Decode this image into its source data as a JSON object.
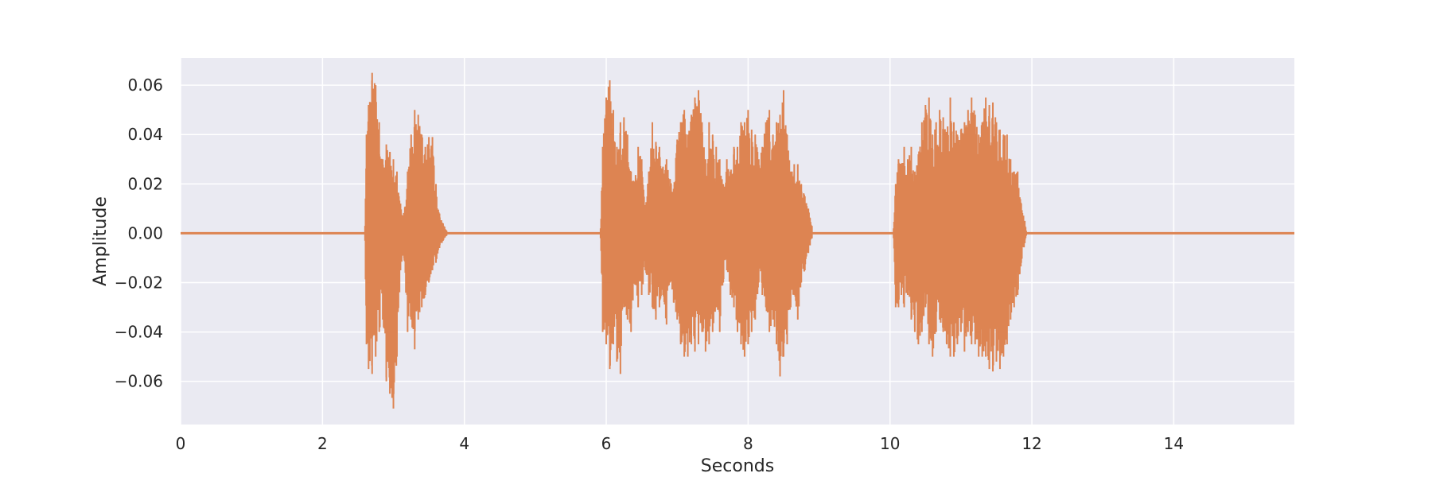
{
  "chart_data": {
    "type": "line",
    "title": "",
    "xlabel": "Seconds",
    "ylabel": "Amplitude",
    "xlim": [
      0,
      15.7
    ],
    "ylim": [
      -0.0775,
      0.071
    ],
    "x_ticks": [
      0,
      2,
      4,
      6,
      8,
      10,
      12,
      14
    ],
    "x_tick_labels": [
      "0",
      "2",
      "4",
      "6",
      "8",
      "10",
      "12",
      "14"
    ],
    "y_ticks": [
      0.06,
      0.04,
      0.02,
      0.0,
      -0.02,
      -0.04,
      -0.06
    ],
    "y_tick_labels": [
      "0.06",
      "0.04",
      "0.02",
      "0.00",
      "−0.02",
      "−0.04",
      "−0.06"
    ],
    "grid": true,
    "style": "seaborn-darkgrid",
    "colors": {
      "background": "#eaeaf2",
      "grid": "#ffffff",
      "series": "#dd8452"
    },
    "series": [
      {
        "description": "Audio waveform envelope (sampled max/min amplitude)",
        "segments": [
          {
            "start": 2.6,
            "end": 3.75,
            "envelope": [
              [
                2.6,
                0.003,
                -0.003
              ],
              [
                2.62,
                0.04,
                -0.045
              ],
              [
                2.65,
                0.052,
                -0.055
              ],
              [
                2.7,
                0.065,
                -0.057
              ],
              [
                2.75,
                0.06,
                -0.05
              ],
              [
                2.8,
                0.045,
                -0.04
              ],
              [
                2.85,
                0.03,
                -0.035
              ],
              [
                2.9,
                0.036,
                -0.06
              ],
              [
                2.95,
                0.033,
                -0.065
              ],
              [
                3.0,
                0.03,
                -0.071
              ],
              [
                3.05,
                0.025,
                -0.05
              ],
              [
                3.1,
                0.012,
                -0.015
              ],
              [
                3.15,
                0.008,
                -0.01
              ],
              [
                3.2,
                0.025,
                -0.04
              ],
              [
                3.25,
                0.04,
                -0.035
              ],
              [
                3.3,
                0.05,
                -0.047
              ],
              [
                3.35,
                0.048,
                -0.035
              ],
              [
                3.4,
                0.04,
                -0.03
              ],
              [
                3.45,
                0.035,
                -0.025
              ],
              [
                3.5,
                0.039,
                -0.02
              ],
              [
                3.55,
                0.039,
                -0.015
              ],
              [
                3.6,
                0.02,
                -0.012
              ],
              [
                3.65,
                0.008,
                -0.006
              ],
              [
                3.7,
                0.004,
                -0.003
              ],
              [
                3.75,
                0.001,
                -0.001
              ]
            ]
          },
          {
            "start": 5.92,
            "end": 8.9,
            "envelope": [
              [
                5.92,
                0.002,
                -0.002
              ],
              [
                5.95,
                0.035,
                -0.04
              ],
              [
                6.0,
                0.055,
                -0.045
              ],
              [
                6.05,
                0.062,
                -0.055
              ],
              [
                6.1,
                0.05,
                -0.045
              ],
              [
                6.15,
                0.035,
                -0.052
              ],
              [
                6.2,
                0.045,
                -0.057
              ],
              [
                6.25,
                0.047,
                -0.03
              ],
              [
                6.3,
                0.04,
                -0.035
              ],
              [
                6.35,
                0.025,
                -0.04
              ],
              [
                6.4,
                0.02,
                -0.02
              ],
              [
                6.45,
                0.035,
                -0.03
              ],
              [
                6.5,
                0.03,
                -0.025
              ],
              [
                6.55,
                0.01,
                -0.015
              ],
              [
                6.6,
                0.025,
                -0.025
              ],
              [
                6.65,
                0.045,
                -0.03
              ],
              [
                6.7,
                0.037,
                -0.035
              ],
              [
                6.75,
                0.035,
                -0.03
              ],
              [
                6.8,
                0.027,
                -0.025
              ],
              [
                6.85,
                0.03,
                -0.037
              ],
              [
                6.9,
                0.022,
                -0.02
              ],
              [
                6.95,
                0.018,
                -0.028
              ],
              [
                7.0,
                0.038,
                -0.035
              ],
              [
                7.05,
                0.045,
                -0.045
              ],
              [
                7.1,
                0.05,
                -0.05
              ],
              [
                7.15,
                0.04,
                -0.05
              ],
              [
                7.2,
                0.048,
                -0.045
              ],
              [
                7.25,
                0.055,
                -0.048
              ],
              [
                7.3,
                0.058,
                -0.045
              ],
              [
                7.35,
                0.045,
                -0.04
              ],
              [
                7.4,
                0.03,
                -0.048
              ],
              [
                7.45,
                0.045,
                -0.045
              ],
              [
                7.5,
                0.04,
                -0.04
              ],
              [
                7.55,
                0.035,
                -0.03
              ],
              [
                7.6,
                0.03,
                -0.04
              ],
              [
                7.65,
                0.02,
                -0.02
              ],
              [
                7.7,
                0.03,
                -0.015
              ],
              [
                7.75,
                0.025,
                -0.025
              ],
              [
                7.8,
                0.035,
                -0.03
              ],
              [
                7.85,
                0.035,
                -0.04
              ],
              [
                7.9,
                0.045,
                -0.045
              ],
              [
                7.95,
                0.045,
                -0.05
              ],
              [
                8.0,
                0.05,
                -0.045
              ],
              [
                8.05,
                0.042,
                -0.04
              ],
              [
                8.1,
                0.04,
                -0.035
              ],
              [
                8.15,
                0.03,
                -0.02
              ],
              [
                8.2,
                0.035,
                -0.025
              ],
              [
                8.25,
                0.045,
                -0.03
              ],
              [
                8.3,
                0.05,
                -0.04
              ],
              [
                8.35,
                0.04,
                -0.035
              ],
              [
                8.4,
                0.045,
                -0.045
              ],
              [
                8.45,
                0.048,
                -0.058
              ],
              [
                8.5,
                0.058,
                -0.05
              ],
              [
                8.55,
                0.04,
                -0.045
              ],
              [
                8.6,
                0.025,
                -0.03
              ],
              [
                8.65,
                0.028,
                -0.025
              ],
              [
                8.7,
                0.028,
                -0.035
              ],
              [
                8.75,
                0.02,
                -0.02
              ],
              [
                8.8,
                0.015,
                -0.015
              ],
              [
                8.85,
                0.01,
                -0.008
              ],
              [
                8.9,
                0.003,
                -0.002
              ]
            ]
          },
          {
            "start": 10.05,
            "end": 11.92,
            "envelope": [
              [
                10.05,
                0.002,
                -0.002
              ],
              [
                10.08,
                0.02,
                -0.03
              ],
              [
                10.12,
                0.03,
                -0.03
              ],
              [
                10.16,
                0.028,
                -0.025
              ],
              [
                10.2,
                0.035,
                -0.03
              ],
              [
                10.25,
                0.03,
                -0.025
              ],
              [
                10.3,
                0.035,
                -0.035
              ],
              [
                10.35,
                0.025,
                -0.04
              ],
              [
                10.4,
                0.032,
                -0.045
              ],
              [
                10.45,
                0.045,
                -0.04
              ],
              [
                10.5,
                0.052,
                -0.03
              ],
              [
                10.55,
                0.055,
                -0.045
              ],
              [
                10.6,
                0.04,
                -0.05
              ],
              [
                10.65,
                0.045,
                -0.04
              ],
              [
                10.7,
                0.05,
                -0.035
              ],
              [
                10.75,
                0.047,
                -0.04
              ],
              [
                10.8,
                0.04,
                -0.045
              ],
              [
                10.85,
                0.055,
                -0.05
              ],
              [
                10.9,
                0.045,
                -0.05
              ],
              [
                10.95,
                0.04,
                -0.045
              ],
              [
                11.0,
                0.042,
                -0.04
              ],
              [
                11.05,
                0.045,
                -0.048
              ],
              [
                11.1,
                0.05,
                -0.04
              ],
              [
                11.15,
                0.055,
                -0.045
              ],
              [
                11.2,
                0.048,
                -0.045
              ],
              [
                11.25,
                0.04,
                -0.05
              ],
              [
                11.3,
                0.045,
                -0.05
              ],
              [
                11.35,
                0.055,
                -0.05
              ],
              [
                11.4,
                0.052,
                -0.055
              ],
              [
                11.45,
                0.053,
                -0.056
              ],
              [
                11.5,
                0.045,
                -0.052
              ],
              [
                11.55,
                0.042,
                -0.055
              ],
              [
                11.6,
                0.04,
                -0.05
              ],
              [
                11.65,
                0.04,
                -0.045
              ],
              [
                11.7,
                0.03,
                -0.035
              ],
              [
                11.75,
                0.025,
                -0.03
              ],
              [
                11.8,
                0.025,
                -0.025
              ],
              [
                11.85,
                0.012,
                -0.012
              ],
              [
                11.9,
                0.005,
                -0.004
              ],
              [
                11.92,
                0.001,
                -0.001
              ]
            ]
          }
        ]
      }
    ]
  }
}
